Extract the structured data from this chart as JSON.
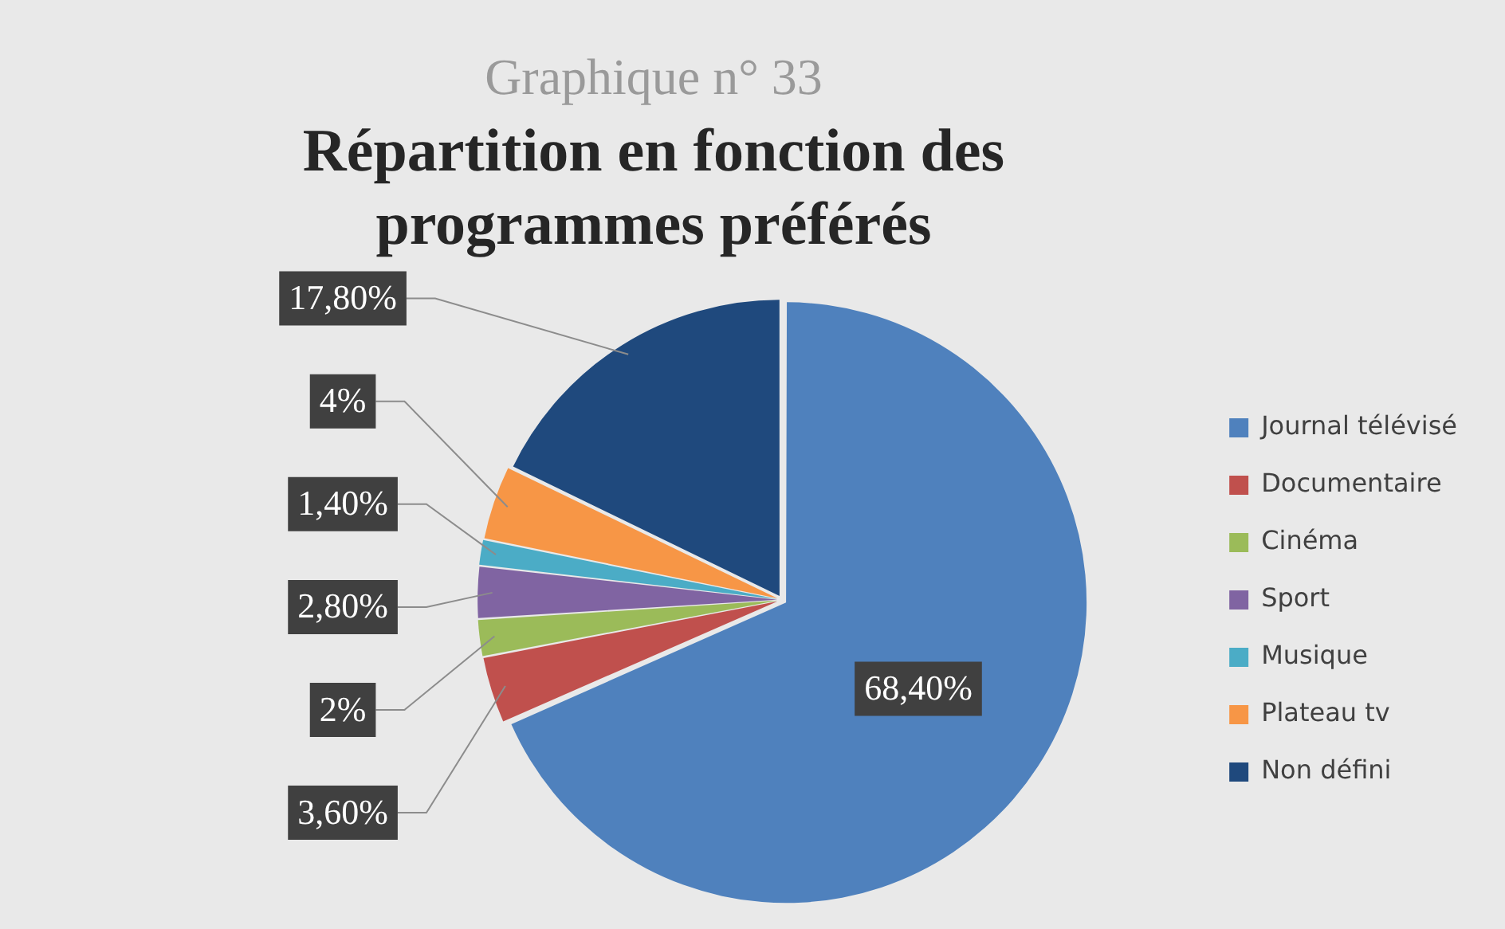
{
  "chart_data": {
    "type": "pie",
    "subtitle": "Graphique n° 33",
    "title": "Répartition en fonction des programmes préférés",
    "categories": [
      "Journal télévisé",
      "Documentaire",
      "Cinéma",
      "Sport",
      "Musique",
      "Plateau tv",
      "Non défini"
    ],
    "values": [
      68.4,
      3.6,
      2,
      2.8,
      1.4,
      4,
      17.8
    ],
    "value_labels": [
      "68,40%",
      "3,60%",
      "2%",
      "2,80%",
      "1,40%",
      "4%",
      "17,80%"
    ],
    "colors": [
      "#4f81bd",
      "#c0504d",
      "#9bbb59",
      "#8064a2",
      "#4bacc6",
      "#f79646",
      "#1f497d"
    ],
    "legend": "right"
  }
}
